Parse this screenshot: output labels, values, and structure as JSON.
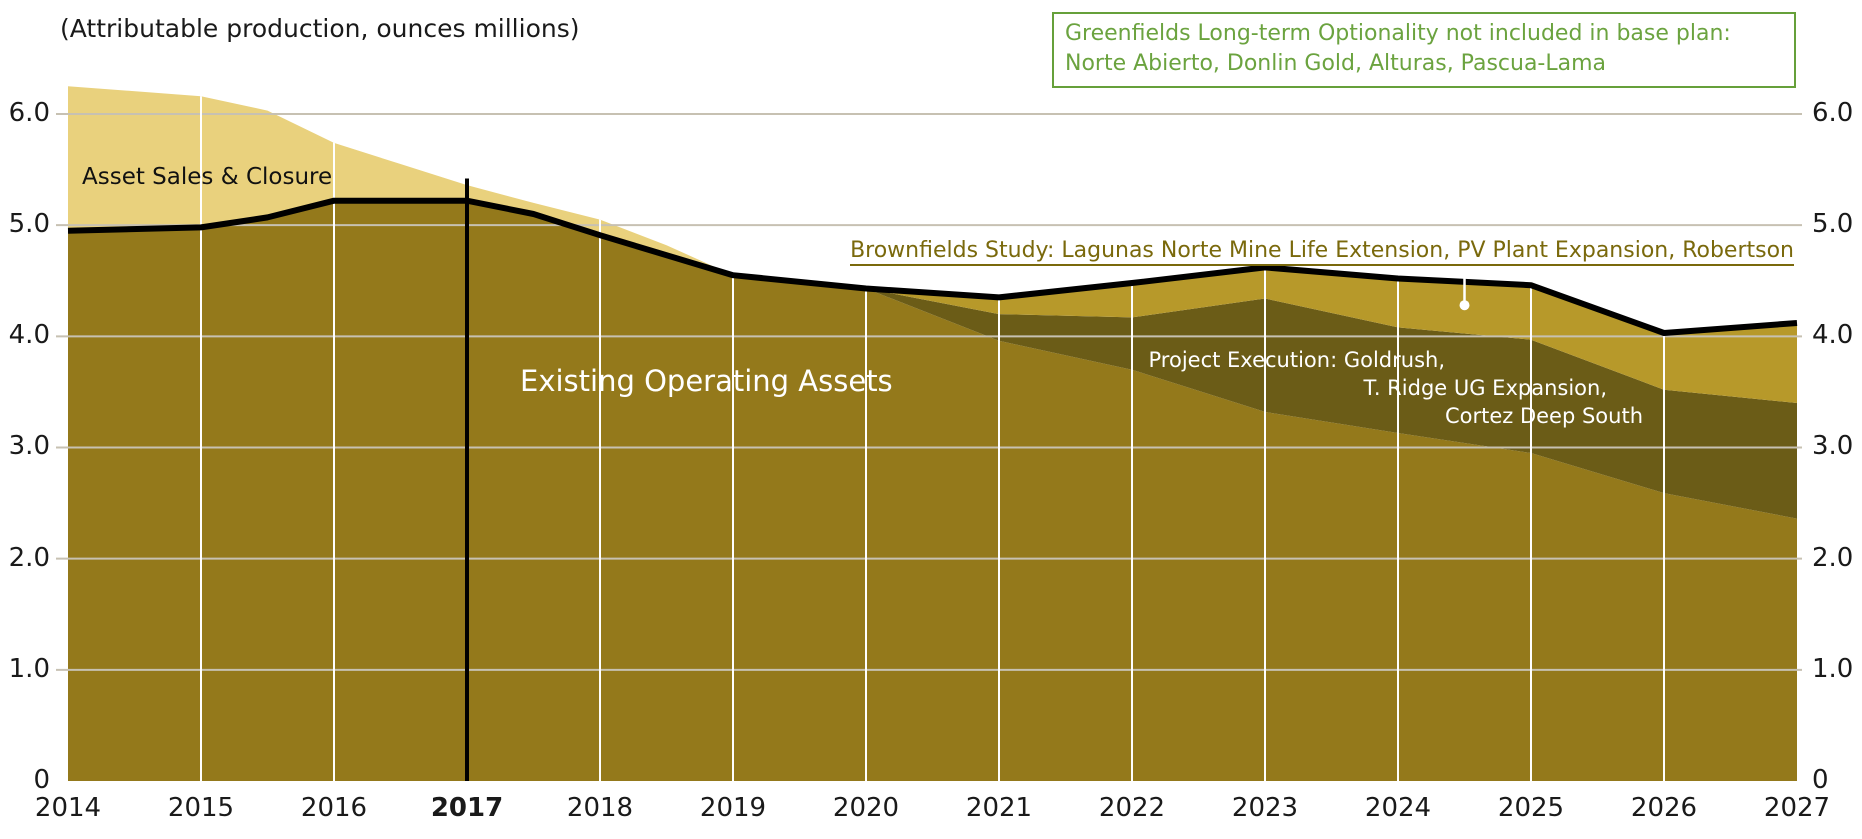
{
  "title": "(Attributable production, ounces millions)",
  "labels": {
    "asset_sales": "Asset Sales & Closure",
    "existing": "Existing Operating Assets",
    "project_execution": [
      "Project Execution: Goldrush,",
      "T. Ridge UG Expansion,",
      "Cortez Deep South"
    ],
    "brownfields": "Brownfields Study: Lagunas Norte Mine Life Extension, PV Plant Expansion, Robertson",
    "greenfields": [
      "Greenfields Long-term Optionality not included in base plan:",
      "Norte Abierto, Donlin Gold, Alturas, Pascua-Lama"
    ]
  },
  "colors": {
    "existing_area": "#94791B",
    "project_execution_area": "#6B5C17",
    "brownfields_area": "#B7992A",
    "asset_sales_area": "#E9D17D",
    "total_line": "#000000",
    "divider_line": "#000000",
    "grid_horizontal": "#C7C1B2",
    "grid_vertical": "#FFFFFF",
    "brownfields_text": "#7A690C",
    "greenfields_text": "#6BA33F",
    "greenfields_border": "#66A03A",
    "axis_text": "#1A1A1A",
    "leader": "#FFFFFF"
  },
  "chart_data": {
    "type": "area",
    "title": "(Attributable production, ounces millions)",
    "xlabel": "",
    "ylabel": "Attributable production (ounces millions)",
    "x_range": [
      2014,
      2027
    ],
    "x_ticks": [
      "2014",
      "2015",
      "2016",
      "2017",
      "2018",
      "2019",
      "2020",
      "2021",
      "2022",
      "2023",
      "2024",
      "2025",
      "2026",
      "2027"
    ],
    "bold_x_tick": "2017",
    "divider_year": 2017,
    "ylim": [
      0,
      6.3
    ],
    "y_ticks": [
      {
        "v": 0,
        "label": "0"
      },
      {
        "v": 1,
        "label": "1.0"
      },
      {
        "v": 2,
        "label": "2.0"
      },
      {
        "v": 3,
        "label": "3.0"
      },
      {
        "v": 4,
        "label": "4.0"
      },
      {
        "v": 5,
        "label": "5.0"
      },
      {
        "v": 6,
        "label": "6.0"
      }
    ],
    "gridline_years": [
      2015,
      2016,
      2018,
      2019,
      2020,
      2021,
      2022,
      2023,
      2024,
      2025,
      2026
    ],
    "legend_position": "in-plot-labels",
    "grid": true,
    "series": [
      {
        "name": "Existing Operating Assets",
        "role": "base-area-cumulative-top",
        "color": "#94791B",
        "points": [
          [
            2014,
            4.95
          ],
          [
            2015,
            4.98
          ],
          [
            2015.5,
            5.07
          ],
          [
            2016,
            5.22
          ],
          [
            2017,
            5.22
          ],
          [
            2017.5,
            5.1
          ],
          [
            2018,
            4.91
          ],
          [
            2019,
            4.55
          ],
          [
            2020,
            4.43
          ],
          [
            2021,
            3.96
          ],
          [
            2022,
            3.7
          ],
          [
            2023,
            3.32
          ],
          [
            2024,
            3.13
          ],
          [
            2025,
            2.95
          ],
          [
            2026,
            2.59
          ],
          [
            2027,
            2.36
          ]
        ]
      },
      {
        "name": "Project Execution: Goldrush, T. Ridge UG Expansion, Cortez Deep South",
        "role": "stacked-area-cumulative-top",
        "color": "#6B5C17",
        "points": [
          [
            2020,
            4.43
          ],
          [
            2021,
            4.2
          ],
          [
            2022,
            4.17
          ],
          [
            2023,
            4.34
          ],
          [
            2024,
            4.08
          ],
          [
            2025,
            3.97
          ],
          [
            2026,
            3.52
          ],
          [
            2027,
            3.4
          ]
        ]
      },
      {
        "name": "Brownfields Study: Lagunas Norte Mine Life Extension, PV Plant Expansion, Robertson",
        "role": "stacked-area-cumulative-top",
        "color": "#B7992A",
        "points": [
          [
            2020,
            4.43
          ],
          [
            2021,
            4.35
          ],
          [
            2022,
            4.48
          ],
          [
            2023,
            4.62
          ],
          [
            2024,
            4.52
          ],
          [
            2025,
            4.46
          ],
          [
            2026,
            4.03
          ],
          [
            2027,
            4.12
          ]
        ]
      },
      {
        "name": "Asset Sales & Closure",
        "role": "upper-wedge-top-envelope",
        "color": "#E9D17D",
        "points": [
          [
            2014,
            6.25
          ],
          [
            2015,
            6.16
          ],
          [
            2015.5,
            6.03
          ],
          [
            2016,
            5.74
          ],
          [
            2016.5,
            5.55
          ],
          [
            2017,
            5.36
          ],
          [
            2017.5,
            5.2
          ],
          [
            2018,
            5.05
          ],
          [
            2018.5,
            4.82
          ],
          [
            2019,
            4.55
          ]
        ]
      }
    ],
    "total_line": {
      "name": "Total attributable production (base plan)",
      "color": "#000000",
      "points": [
        [
          2014,
          4.95
        ],
        [
          2015,
          4.98
        ],
        [
          2015.5,
          5.07
        ],
        [
          2016,
          5.22
        ],
        [
          2017,
          5.22
        ],
        [
          2017.5,
          5.1
        ],
        [
          2018,
          4.91
        ],
        [
          2019,
          4.55
        ],
        [
          2020,
          4.43
        ],
        [
          2021,
          4.35
        ],
        [
          2022,
          4.48
        ],
        [
          2023,
          4.62
        ],
        [
          2024,
          4.52
        ],
        [
          2025,
          4.46
        ],
        [
          2026,
          4.03
        ],
        [
          2027,
          4.12
        ]
      ]
    },
    "callout_leader": {
      "x_year": 2024.5,
      "from_value": 4.66,
      "dot_value": 4.28,
      "color": "#FFFFFF",
      "target_series": "Brownfields Study: Lagunas Norte Mine Life Extension, PV Plant Expansion, Robertson"
    }
  }
}
